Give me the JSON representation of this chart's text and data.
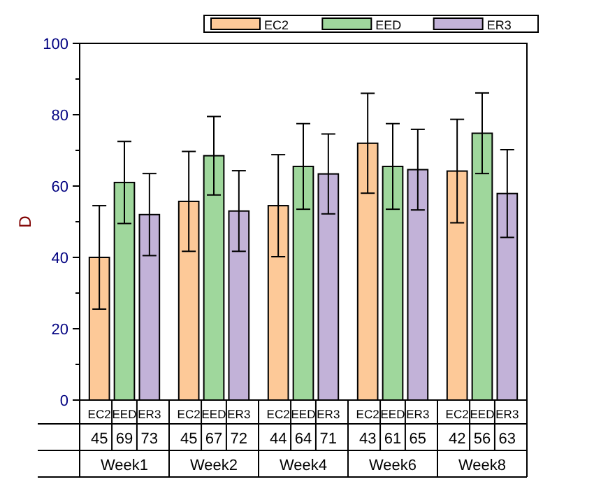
{
  "chart_data": {
    "type": "bar",
    "ylabel": "D",
    "categories": [
      "Week1",
      "Week2",
      "Week4",
      "Week6",
      "Week8"
    ],
    "series": [
      {
        "name": "EC2",
        "color": "#fdc998",
        "values": [
          40,
          55.7,
          54.5,
          72,
          64.2
        ],
        "errors": [
          14.5,
          14,
          14.3,
          14,
          14.5
        ]
      },
      {
        "name": "EED",
        "color": "#9fd79c",
        "values": [
          61,
          68.5,
          65.5,
          65.5,
          74.8
        ],
        "errors": [
          11.5,
          11,
          12,
          12,
          11.3
        ]
      },
      {
        "name": "ER3",
        "color": "#c2b2d8",
        "values": [
          52,
          53,
          63.4,
          64.6,
          57.9
        ],
        "errors": [
          11.5,
          11.3,
          11.2,
          11.3,
          12.3
        ]
      }
    ],
    "ylim": [
      0,
      100
    ],
    "yticks": [
      0,
      {
        "value": 10,
        "label": null
      },
      20,
      {
        "value": 30,
        "label": null
      },
      40,
      {
        "value": 50,
        "label": null
      },
      60,
      {
        "value": 70,
        "label": null
      },
      80,
      {
        "value": 90,
        "label": null
      },
      100
    ],
    "legend": "top",
    "grid": false,
    "annotations": [
      "45",
      "69",
      "73",
      "45",
      "67",
      "72",
      "44",
      "64",
      "71",
      "43",
      "61",
      "65",
      "42",
      "56",
      "63"
    ]
  }
}
